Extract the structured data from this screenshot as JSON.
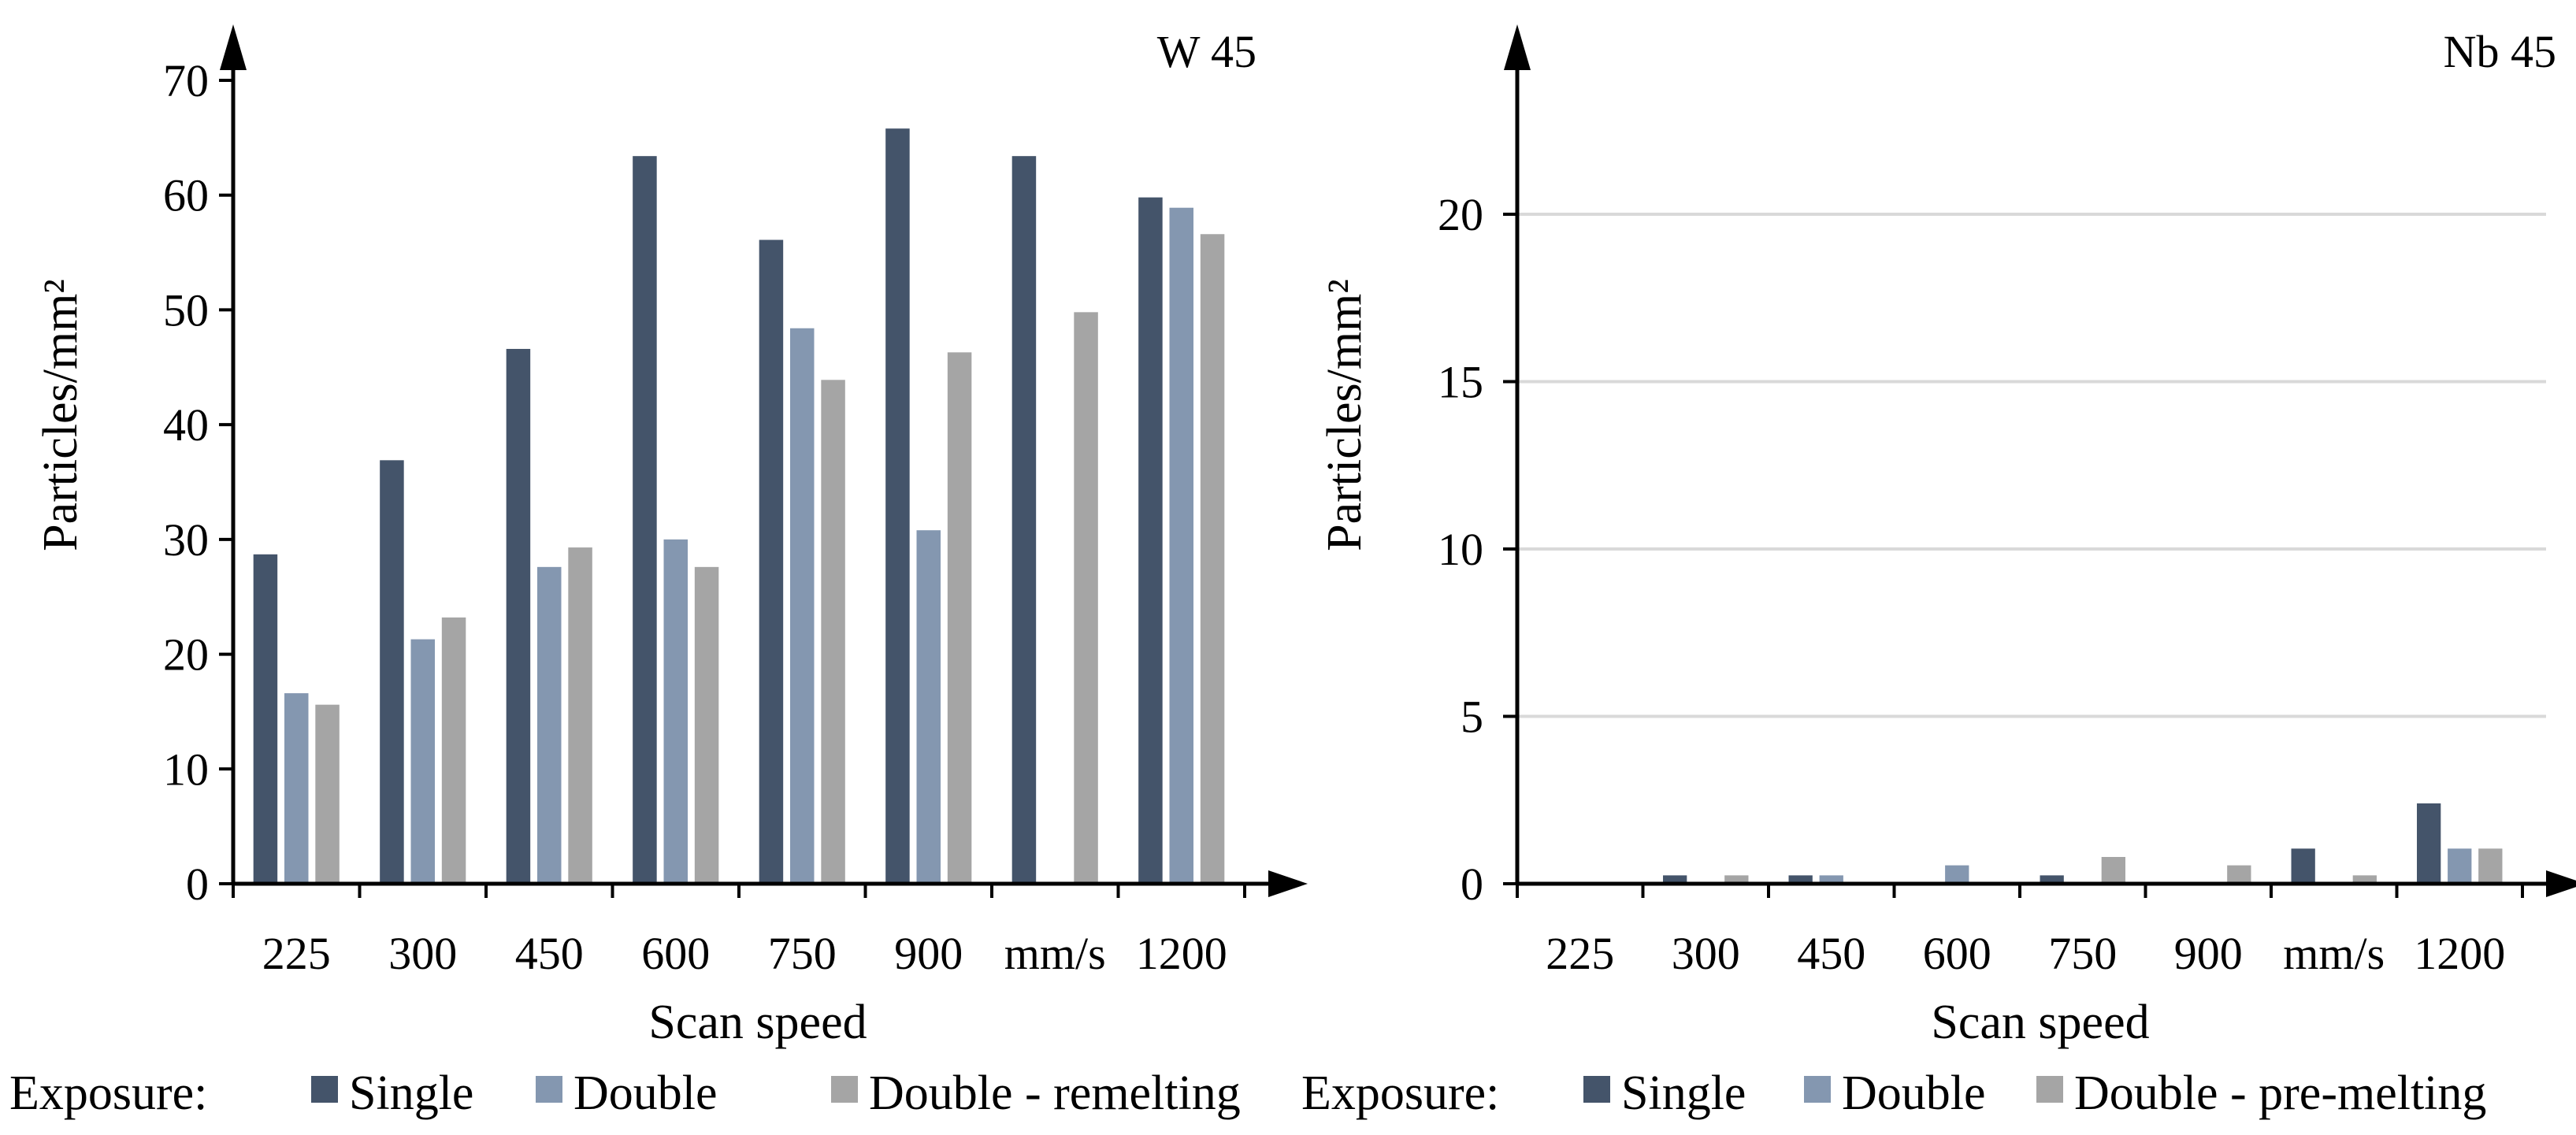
{
  "colors": {
    "single": "#44546a",
    "double": "#8497b0",
    "double_third": "#a5a5a5",
    "grid": "#d9d9d9",
    "axis": "#000000"
  },
  "chart_data": [
    {
      "type": "bar",
      "title": "W 45",
      "xlabel": "Scan speed",
      "ylabel": "Particles/mm²",
      "categories": [
        "225",
        "300",
        "450",
        "600",
        "750",
        "900",
        "mm/s",
        "1200"
      ],
      "ylim": [
        0,
        70
      ],
      "yticks": [
        0,
        10,
        20,
        30,
        40,
        50,
        60,
        70
      ],
      "grid": false,
      "legend": {
        "title": "Exposure:",
        "placement": "bottom",
        "entries": [
          "Single",
          "Double",
          "Double - remelting"
        ]
      },
      "series": [
        {
          "name": "Single",
          "values": [
            28.7,
            36.9,
            46.6,
            63.4,
            56.1,
            65.8,
            63.4,
            59.8
          ]
        },
        {
          "name": "Double",
          "values": [
            16.6,
            21.3,
            27.6,
            30.0,
            48.4,
            30.8,
            null,
            58.9
          ]
        },
        {
          "name": "Double - remelting",
          "values": [
            15.6,
            23.2,
            29.3,
            27.6,
            43.9,
            46.3,
            49.8,
            56.6
          ]
        }
      ]
    },
    {
      "type": "bar",
      "title": "Nb 45",
      "xlabel": "Scan speed",
      "ylabel": "Particles/mm²",
      "categories": [
        "225",
        "300",
        "450",
        "600",
        "750",
        "900",
        "mm/s",
        "1200"
      ],
      "ylim": [
        0,
        24
      ],
      "yticks": [
        0,
        5,
        10,
        15,
        20
      ],
      "grid": true,
      "legend": {
        "title": "Exposure:",
        "placement": "bottom",
        "entries": [
          "Single",
          "Double",
          "Double - pre-melting"
        ]
      },
      "series": [
        {
          "name": "Single",
          "values": [
            0,
            0.25,
            0.25,
            0,
            0.25,
            0,
            1.05,
            2.4
          ]
        },
        {
          "name": "Double",
          "values": [
            0,
            0,
            0.25,
            0.55,
            0,
            0,
            0,
            1.05
          ]
        },
        {
          "name": "Double - pre-melting",
          "values": [
            0,
            0.25,
            0,
            0,
            0.8,
            0.55,
            0.25,
            1.05
          ]
        }
      ]
    }
  ]
}
